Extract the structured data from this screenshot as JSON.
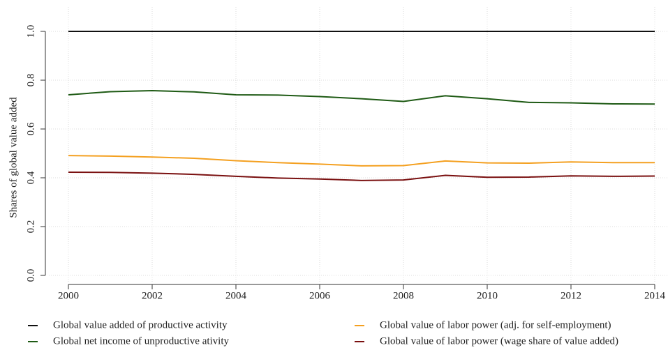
{
  "chart_data": {
    "type": "line",
    "ylabel": "Shares of global value added",
    "x": [
      2000,
      2001,
      2002,
      2003,
      2004,
      2005,
      2006,
      2007,
      2008,
      2009,
      2010,
      2011,
      2012,
      2013,
      2014
    ],
    "xlim": [
      2000,
      2014
    ],
    "xticks": [
      2000,
      2002,
      2004,
      2006,
      2008,
      2010,
      2012,
      2014
    ],
    "ylim": [
      0,
      1
    ],
    "yticks": [
      {
        "value": 0,
        "label": "0.0"
      },
      {
        "value": 0.2,
        "label": "0.2"
      },
      {
        "value": 0.4,
        "label": "0.4"
      },
      {
        "value": 0.6,
        "label": "0.6"
      },
      {
        "value": 0.8,
        "label": "0.8"
      },
      {
        "value": 1,
        "label": "1.0"
      }
    ],
    "grid": true,
    "series": [
      {
        "name": "Global value added of productive activity",
        "color": "#111111",
        "values": [
          1,
          1,
          1,
          1,
          1,
          1,
          1,
          1,
          1,
          1,
          1,
          1,
          1,
          1,
          1
        ]
      },
      {
        "name": "Global net income of unproductive ativity",
        "color": "#1e5a14",
        "values": [
          0.74,
          0.753,
          0.757,
          0.752,
          0.74,
          0.739,
          0.733,
          0.724,
          0.713,
          0.736,
          0.724,
          0.709,
          0.707,
          0.703,
          0.702
        ]
      },
      {
        "name": "Global value of labor power (adj. for self-employment)",
        "color": "#f4a020",
        "values": [
          0.491,
          0.489,
          0.485,
          0.48,
          0.47,
          0.462,
          0.456,
          0.449,
          0.45,
          0.469,
          0.461,
          0.46,
          0.465,
          0.462,
          0.462
        ]
      },
      {
        "name": "Global value of labor power (wage share of value added)",
        "color": "#7a1010",
        "values": [
          0.423,
          0.422,
          0.419,
          0.414,
          0.406,
          0.399,
          0.395,
          0.389,
          0.391,
          0.41,
          0.402,
          0.403,
          0.408,
          0.406,
          0.407
        ]
      }
    ]
  }
}
